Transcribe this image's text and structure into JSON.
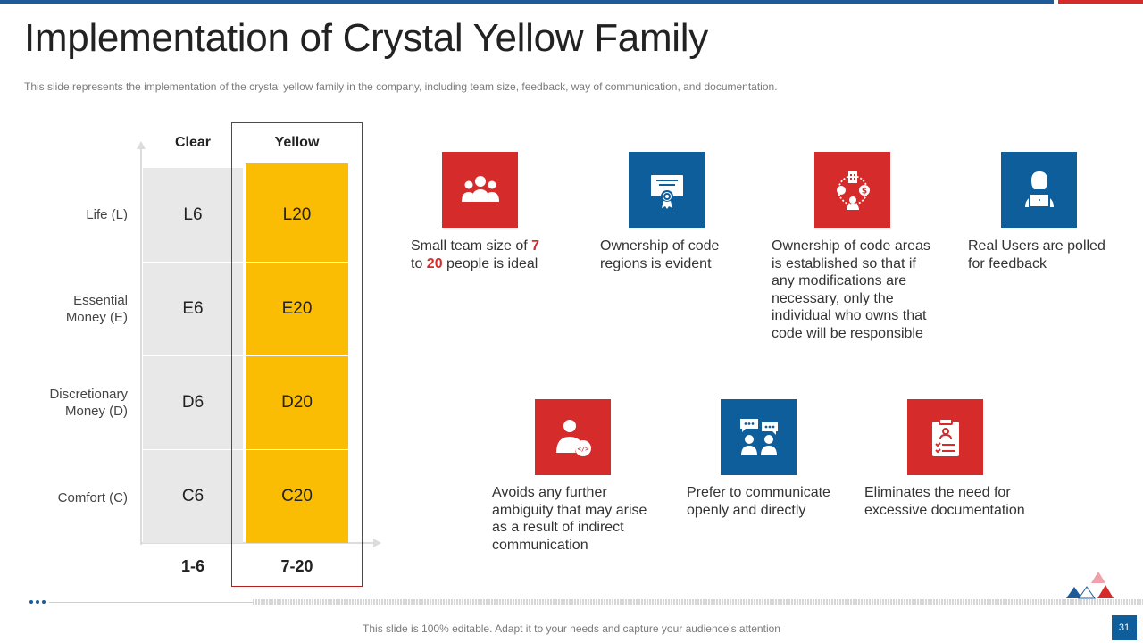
{
  "header": {
    "title": "Implementation of Crystal Yellow Family",
    "subtitle": "This slide represents the implementation of the crystal yellow family in the company, including team size, feedback, way of communication, and documentation."
  },
  "matrix": {
    "columns": [
      "Clear",
      "Yellow"
    ],
    "rows": [
      {
        "label": "Life (L)",
        "clear": "L6",
        "yellow": "L20"
      },
      {
        "label": "Essential Money (E)",
        "clear": "E6",
        "yellow": "E20"
      },
      {
        "label": "Discretionary Money (D)",
        "clear": "D6",
        "yellow": "D20"
      },
      {
        "label": "Comfort (C)",
        "clear": "C6",
        "yellow": "C20"
      }
    ],
    "footer": [
      "1-6",
      "7-20"
    ]
  },
  "features": [
    {
      "icon": "team-icon",
      "color": "#d62b2b",
      "text": "Small team size of 7 to 20 people is ideal",
      "pre": "Small team size of ",
      "n1": "7",
      "mid": " to ",
      "n2": "20",
      "post": " people is ideal"
    },
    {
      "icon": "certificate-icon",
      "color": "#0f5e9c",
      "text": "Ownership of code regions is evident"
    },
    {
      "icon": "network-icon",
      "color": "#d62b2b",
      "text": "Ownership of code areas is established so that if any modifications are necessary, only the individual who owns that code will be responsible"
    },
    {
      "icon": "user-laptop-icon",
      "color": "#0f5e9c",
      "text": "Real Users are polled for feedback"
    },
    {
      "icon": "developer-icon",
      "color": "#d62b2b",
      "text": "Avoids any further ambiguity that may arise as a result of indirect communication"
    },
    {
      "icon": "conversation-icon",
      "color": "#0f5e9c",
      "text": "Prefer to communicate openly and directly"
    },
    {
      "icon": "clipboard-icon",
      "color": "#d62b2b",
      "text": "Eliminates the need for excessive documentation"
    }
  ],
  "footer": {
    "note": "This slide is 100% editable. Adapt it to your needs and capture your audience's attention",
    "page_number": "31"
  }
}
